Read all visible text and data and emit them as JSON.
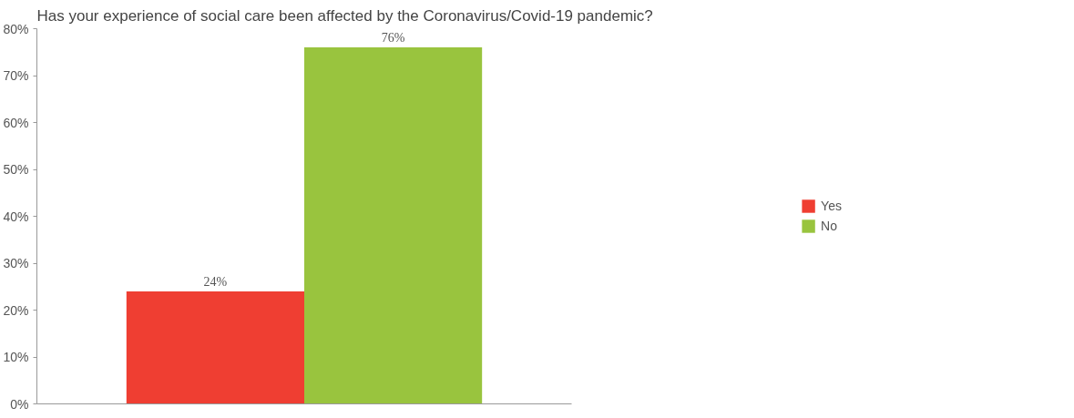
{
  "chart_data": {
    "type": "bar",
    "title": "Has your experience of social care been affected by the Coronavirus/Covid-19 pandemic?",
    "categories": [
      null
    ],
    "series": [
      {
        "name": "Yes",
        "color": "#ef3e32",
        "values": [
          24
        ],
        "value_labels": [
          "24%"
        ]
      },
      {
        "name": "No",
        "color": "#99c43e",
        "values": [
          76
        ],
        "value_labels": [
          "76%"
        ]
      }
    ],
    "ylim": [
      0,
      80
    ],
    "yticks": [
      {
        "value": 0,
        "label": "0%"
      },
      {
        "value": 10,
        "label": "10%"
      },
      {
        "value": 20,
        "label": "20%"
      },
      {
        "value": 30,
        "label": "30%"
      },
      {
        "value": 40,
        "label": "40%"
      },
      {
        "value": 50,
        "label": "50%"
      },
      {
        "value": 60,
        "label": "60%"
      },
      {
        "value": 70,
        "label": "70%"
      },
      {
        "value": 80,
        "label": "80%"
      }
    ],
    "grid": false,
    "legend": "right"
  }
}
